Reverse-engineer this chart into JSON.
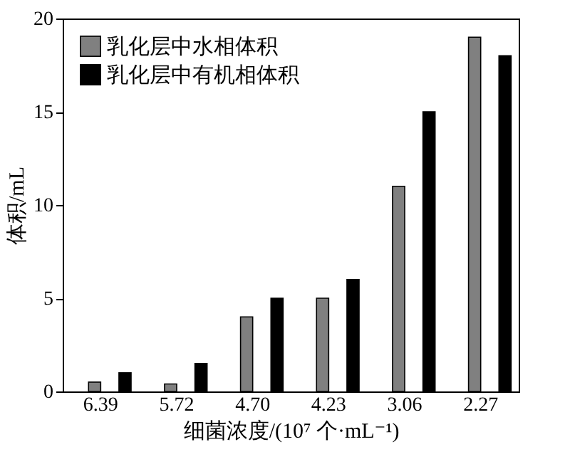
{
  "chart_data": {
    "type": "bar",
    "xlabel": "细菌浓度/(10⁷ 个·mL⁻¹)",
    "ylabel": "体积/mL",
    "categories": [
      "6.39",
      "5.72",
      "4.70",
      "4.23",
      "3.06",
      "2.27"
    ],
    "series": [
      {
        "name": "乳化层中水相体积",
        "color": "#808080",
        "values": [
          0.5,
          0.4,
          4,
          5,
          11,
          19
        ]
      },
      {
        "name": "乳化层中有机相体积",
        "color": "#000000",
        "values": [
          1,
          1.5,
          5,
          6,
          15,
          18
        ]
      }
    ],
    "ylim": [
      0,
      20
    ],
    "yticks": [
      0,
      5,
      10,
      15,
      20
    ],
    "grid": false,
    "legend": "top left"
  }
}
